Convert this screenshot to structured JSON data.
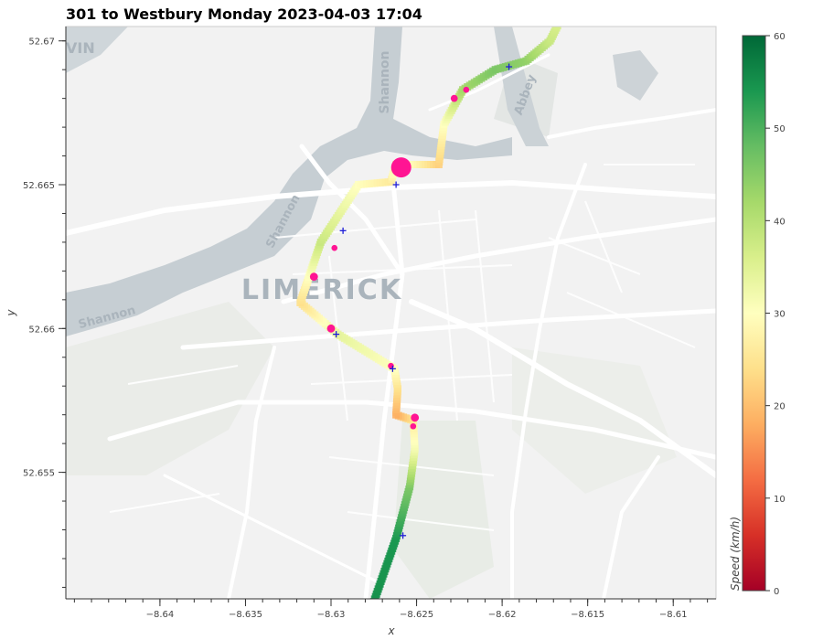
{
  "title": "301 to Westbury Monday 2023-04-03 17:04",
  "map_labels": {
    "city": "LIMERICK",
    "river_north": "Shannon",
    "river_mid": "Shannon",
    "river_west": "Shannon",
    "abbey": "Abbey",
    "corner": "VIN"
  },
  "colors": {
    "stop_marker": "#ff1493",
    "cross_marker": "#1f1fd6",
    "water": "#c6ced3",
    "land": "#f2f2f2",
    "park": "#e8ece6",
    "road": "#ffffff"
  },
  "chart_data": {
    "type": "scatter",
    "title": "301 to Westbury Monday 2023-04-03 17:04",
    "xlabel": "x",
    "ylabel": "y",
    "xlim": [
      -8.6455,
      -8.6075
    ],
    "ylim": [
      52.6506,
      52.6705
    ],
    "xticks": [
      -8.64,
      -8.635,
      -8.63,
      -8.625,
      -8.62,
      -8.615,
      -8.61
    ],
    "xtick_labels": [
      "−8.64",
      "−8.635",
      "−8.63",
      "−8.625",
      "−8.62",
      "−8.615",
      "−8.61"
    ],
    "yticks": [
      52.655,
      52.66,
      52.665,
      52.67
    ],
    "ytick_labels": [
      "52.655",
      "52.66",
      "52.665",
      "52.67"
    ],
    "colorbar": {
      "label": "Speed (km/h)",
      "min": 0,
      "max": 60,
      "ticks": [
        0,
        10,
        20,
        30,
        40,
        50,
        60
      ],
      "colormap": "RdYlGn"
    },
    "route": [
      {
        "x": -8.6275,
        "y": 52.6505,
        "speed": 55
      },
      {
        "x": -8.6262,
        "y": 52.6527,
        "speed": 54
      },
      {
        "x": -8.6254,
        "y": 52.6545,
        "speed": 46
      },
      {
        "x": -8.6251,
        "y": 52.6558,
        "speed": 32
      },
      {
        "x": -8.6252,
        "y": 52.6568,
        "speed": 26
      },
      {
        "x": -8.6262,
        "y": 52.657,
        "speed": 18
      },
      {
        "x": -8.6261,
        "y": 52.6579,
        "speed": 24
      },
      {
        "x": -8.6263,
        "y": 52.6586,
        "speed": 30
      },
      {
        "x": -8.6296,
        "y": 52.6598,
        "speed": 34
      },
      {
        "x": -8.6318,
        "y": 52.6609,
        "speed": 24
      },
      {
        "x": -8.6306,
        "y": 52.663,
        "speed": 38
      },
      {
        "x": -8.6284,
        "y": 52.665,
        "speed": 30
      },
      {
        "x": -8.6265,
        "y": 52.6651,
        "speed": 26
      },
      {
        "x": -8.6262,
        "y": 52.6657,
        "speed": 34
      },
      {
        "x": -8.6237,
        "y": 52.6657,
        "speed": 22
      },
      {
        "x": -8.6234,
        "y": 52.6671,
        "speed": 30
      },
      {
        "x": -8.6223,
        "y": 52.6683,
        "speed": 42
      },
      {
        "x": -8.6204,
        "y": 52.669,
        "speed": 46
      },
      {
        "x": -8.6186,
        "y": 52.6693,
        "speed": 44
      },
      {
        "x": -8.6172,
        "y": 52.67,
        "speed": 38
      },
      {
        "x": -8.6167,
        "y": 52.6706,
        "speed": 36
      }
    ],
    "stops": [
      {
        "x": -8.6259,
        "y": 52.6656,
        "size": 10
      },
      {
        "x": -8.6251,
        "y": 52.6569,
        "size": 4
      },
      {
        "x": -8.6252,
        "y": 52.6566,
        "size": 3
      },
      {
        "x": -8.6265,
        "y": 52.6587,
        "size": 3
      },
      {
        "x": -8.63,
        "y": 52.66,
        "size": 4
      },
      {
        "x": -8.631,
        "y": 52.6618,
        "size": 4
      },
      {
        "x": -8.6298,
        "y": 52.6628,
        "size": 3
      },
      {
        "x": -8.6228,
        "y": 52.668,
        "size": 3.5
      },
      {
        "x": -8.6221,
        "y": 52.6683,
        "size": 3
      }
    ],
    "crosses": [
      {
        "x": -8.6262,
        "y": 52.665
      },
      {
        "x": -8.6293,
        "y": 52.6634
      },
      {
        "x": -8.6297,
        "y": 52.6598
      },
      {
        "x": -8.6264,
        "y": 52.6586
      },
      {
        "x": -8.6258,
        "y": 52.6528
      },
      {
        "x": -8.6196,
        "y": 52.6691
      }
    ]
  }
}
